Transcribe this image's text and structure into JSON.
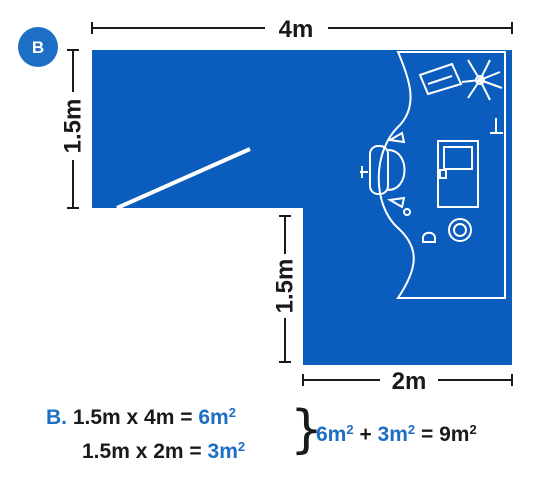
{
  "badge": "B",
  "dimensions": {
    "top_width": "4m",
    "left_height": "1.5m",
    "inner_height": "1.5m",
    "bottom_width": "2m"
  },
  "calculation": {
    "prefix": "B.",
    "line1_expr": "1.5m x 4m =",
    "line1_result": "6m",
    "line2_expr": "1.5m x 2m =",
    "line2_result": "3m",
    "total_part1": "6m",
    "total_plus": "+",
    "total_part2": "3m",
    "total_equals": "= 9m",
    "superscript": "2"
  },
  "colors": {
    "room_fill": "#0a5dbd",
    "furniture_line": "#ffffff",
    "accent_text": "#1c6fc4",
    "dimension_line": "#1a1a1a"
  }
}
